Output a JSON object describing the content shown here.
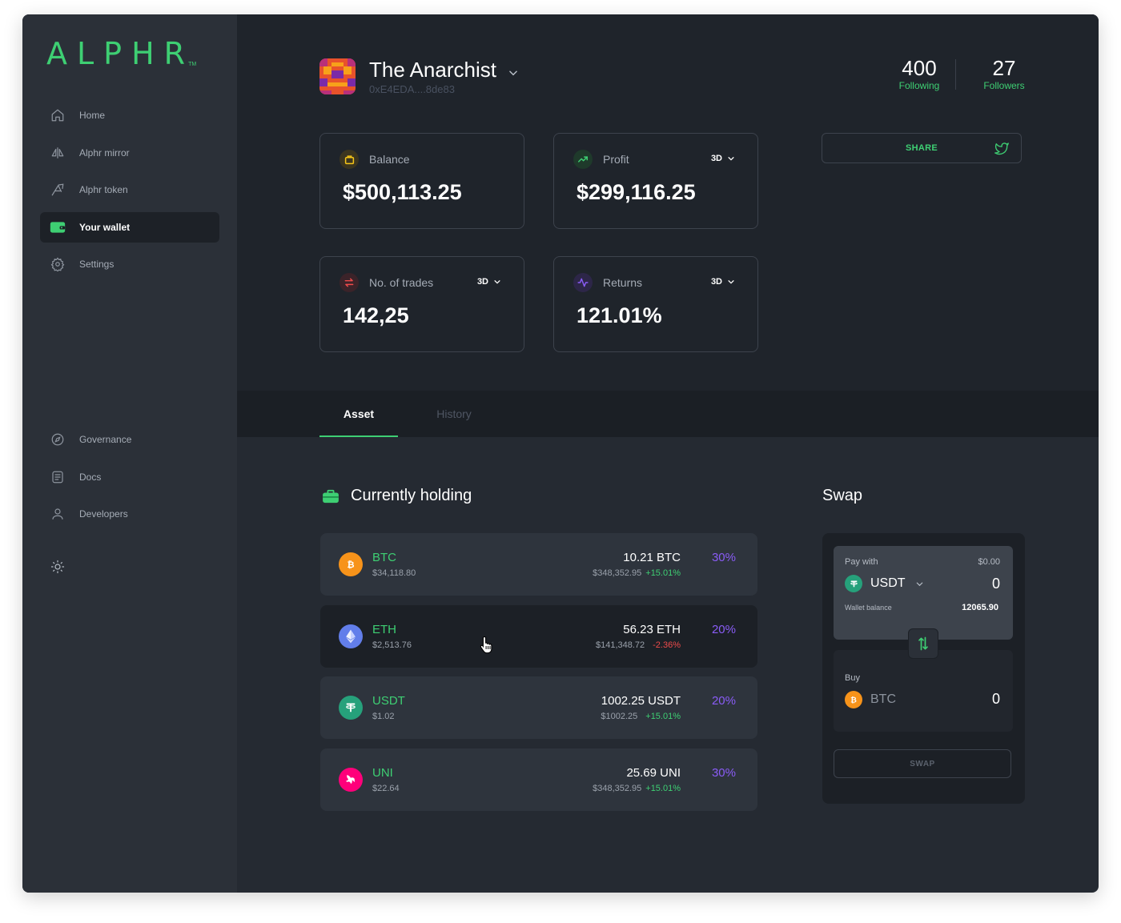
{
  "brand": {
    "logo_text": "ALPHR",
    "trademark": "TM"
  },
  "sidebar": {
    "items": [
      {
        "label": "Home",
        "icon": "home-icon"
      },
      {
        "label": "Alphr mirror",
        "icon": "mirror-icon"
      },
      {
        "label": "Alphr token",
        "icon": "token-icon"
      },
      {
        "label": "Your wallet",
        "icon": "wallet-icon",
        "active": true
      },
      {
        "label": "Settings",
        "icon": "gear-icon"
      }
    ],
    "bottom_items": [
      {
        "label": "Governance",
        "icon": "compass-icon"
      },
      {
        "label": "Docs",
        "icon": "document-icon"
      },
      {
        "label": "Developers",
        "icon": "user-icon"
      }
    ],
    "theme_toggle_icon": "sun-icon"
  },
  "profile": {
    "name": "The Anarchist",
    "address": "0xE4EDA....8de83",
    "following": {
      "count": "400",
      "label": "Following"
    },
    "followers": {
      "count": "27",
      "label": "Followers"
    }
  },
  "cards": {
    "balance": {
      "title": "Balance",
      "value": "$500,113.25"
    },
    "profit": {
      "title": "Profit",
      "value": "$299,116.25",
      "period": "3D"
    },
    "trades": {
      "title": "No. of trades",
      "value": "142,25",
      "period": "3D"
    },
    "returns": {
      "title": "Returns",
      "value": "121.01%",
      "period": "3D"
    }
  },
  "share": {
    "label": "SHARE",
    "icon": "twitter-icon"
  },
  "tabs": {
    "asset": "Asset",
    "history": "History",
    "active": "Asset"
  },
  "holdings": {
    "title": "Currently holding",
    "rows": [
      {
        "symbol": "BTC",
        "price": "$34,118.80",
        "amount": "10.21 BTC",
        "value": "$348,352.95",
        "change": "+15.01%",
        "direction": "up",
        "percent": "30%"
      },
      {
        "symbol": "ETH",
        "price": "$2,513.76",
        "amount": "56.23 ETH",
        "value": "$141,348.72",
        "change": "-2.36%",
        "direction": "down",
        "percent": "20%"
      },
      {
        "symbol": "USDT",
        "price": "$1.02",
        "amount": "1002.25 USDT",
        "value": "$1002.25",
        "change": "+15.01%",
        "direction": "up",
        "percent": "20%"
      },
      {
        "symbol": "UNI",
        "price": "$22.64",
        "amount": "25.69 UNI",
        "value": "$348,352.95",
        "change": "+15.01%",
        "direction": "up",
        "percent": "30%"
      }
    ]
  },
  "swap": {
    "title": "Swap",
    "pay_label": "Pay with",
    "pay_usd": "$0.00",
    "pay_token": "USDT",
    "pay_amount": "0",
    "wallet_balance_label": "Wallet balance",
    "wallet_balance": "12065.90",
    "buy_label": "Buy",
    "buy_token": "BTC",
    "buy_amount": "0",
    "button_label": "SWAP"
  },
  "colors": {
    "accent": "#3ecf73",
    "purple": "#8a5cf6",
    "negative": "#ef4b4b",
    "background": "#252a32",
    "btc": "#f7931a",
    "eth": "#627eea",
    "usdt": "#26a17b",
    "uni": "#ff007a"
  }
}
